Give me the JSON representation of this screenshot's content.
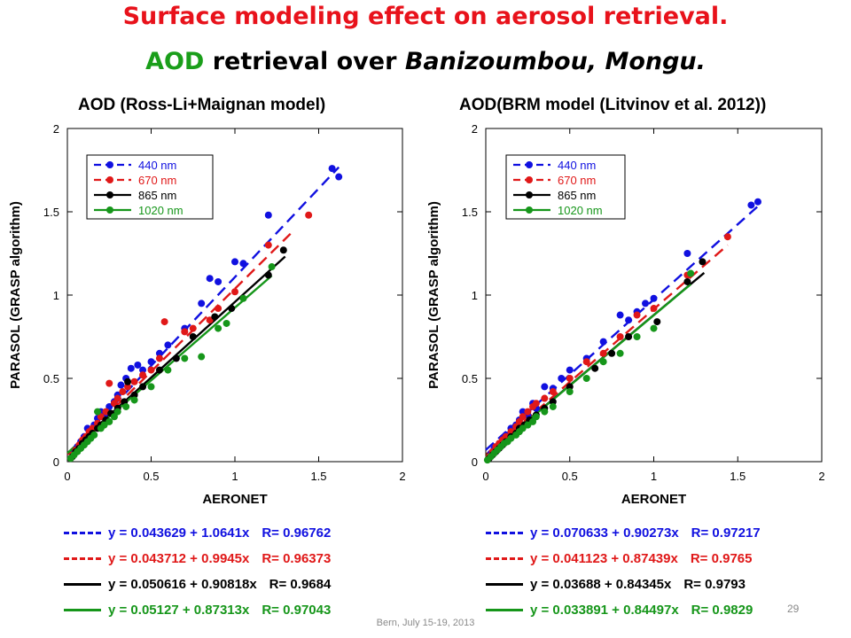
{
  "title": {
    "line1": "Surface modeling effect on aerosol retrieval.",
    "line2_aod": "AOD",
    "line2_mid": " retrieval over ",
    "line2_place": "Banizoumbou, Mongu."
  },
  "footer": "Bern, July 15-19, 2013",
  "page_number": "29",
  "colors": {
    "440": "#1010e0",
    "670": "#e01818",
    "865": "#000000",
    "1020": "#16961a"
  },
  "chart_data": [
    {
      "type": "scatter",
      "title": "AOD (Ross-Li+Maignan model)",
      "xlabel": "AERONET",
      "ylabel": "PARASOL (GRASP algorithm)",
      "xlim": [
        0,
        2
      ],
      "ylim": [
        0,
        2
      ],
      "xticks": [
        "0",
        "0.5",
        "1",
        "1.5",
        "2"
      ],
      "yticks": [
        "0",
        "0.5",
        "1",
        "1.5",
        "2"
      ],
      "legend_position": "top-left",
      "series": [
        {
          "name": "440 nm",
          "key": "440",
          "points": [
            [
              0.04,
              0.05
            ],
            [
              0.06,
              0.09
            ],
            [
              0.08,
              0.12
            ],
            [
              0.1,
              0.15
            ],
            [
              0.12,
              0.2
            ],
            [
              0.14,
              0.18
            ],
            [
              0.16,
              0.22
            ],
            [
              0.18,
              0.26
            ],
            [
              0.2,
              0.3
            ],
            [
              0.22,
              0.28
            ],
            [
              0.25,
              0.33
            ],
            [
              0.28,
              0.36
            ],
            [
              0.3,
              0.4
            ],
            [
              0.32,
              0.46
            ],
            [
              0.35,
              0.5
            ],
            [
              0.38,
              0.56
            ],
            [
              0.42,
              0.58
            ],
            [
              0.45,
              0.55
            ],
            [
              0.5,
              0.6
            ],
            [
              0.55,
              0.65
            ],
            [
              0.6,
              0.7
            ],
            [
              0.7,
              0.8
            ],
            [
              0.8,
              0.95
            ],
            [
              0.85,
              1.1
            ],
            [
              0.9,
              1.08
            ],
            [
              1.0,
              1.2
            ],
            [
              1.05,
              1.19
            ],
            [
              1.2,
              1.48
            ],
            [
              1.58,
              1.76
            ],
            [
              1.62,
              1.71
            ]
          ],
          "fit": {
            "intercept": 0.043629,
            "slope": 1.0641,
            "x_end": 1.62
          },
          "fit_label": "y = 0.043629 + 1.0641x",
          "r_label": "R= 0.96762"
        },
        {
          "name": "670 nm",
          "key": "670",
          "points": [
            [
              0.03,
              0.04
            ],
            [
              0.05,
              0.07
            ],
            [
              0.07,
              0.1
            ],
            [
              0.09,
              0.13
            ],
            [
              0.11,
              0.15
            ],
            [
              0.13,
              0.18
            ],
            [
              0.15,
              0.2
            ],
            [
              0.18,
              0.23
            ],
            [
              0.2,
              0.27
            ],
            [
              0.23,
              0.3
            ],
            [
              0.25,
              0.47
            ],
            [
              0.28,
              0.35
            ],
            [
              0.3,
              0.38
            ],
            [
              0.33,
              0.42
            ],
            [
              0.36,
              0.45
            ],
            [
              0.4,
              0.48
            ],
            [
              0.45,
              0.52
            ],
            [
              0.5,
              0.55
            ],
            [
              0.55,
              0.62
            ],
            [
              0.58,
              0.84
            ],
            [
              0.7,
              0.78
            ],
            [
              0.75,
              0.8
            ],
            [
              0.85,
              0.85
            ],
            [
              0.9,
              0.92
            ],
            [
              1.0,
              1.02
            ],
            [
              1.2,
              1.3
            ],
            [
              1.44,
              1.48
            ]
          ],
          "fit": {
            "intercept": 0.043712,
            "slope": 0.9945,
            "x_end": 1.35
          },
          "fit_label": "y = 0.043712 + 0.9945x",
          "r_label": "R= 0.96373"
        },
        {
          "name": "865 nm",
          "key": "865",
          "points": [
            [
              0.03,
              0.03
            ],
            [
              0.05,
              0.06
            ],
            [
              0.07,
              0.08
            ],
            [
              0.09,
              0.11
            ],
            [
              0.11,
              0.13
            ],
            [
              0.13,
              0.15
            ],
            [
              0.15,
              0.17
            ],
            [
              0.18,
              0.2
            ],
            [
              0.2,
              0.22
            ],
            [
              0.23,
              0.25
            ],
            [
              0.26,
              0.29
            ],
            [
              0.3,
              0.32
            ],
            [
              0.34,
              0.36
            ],
            [
              0.36,
              0.48
            ],
            [
              0.4,
              0.4
            ],
            [
              0.45,
              0.45
            ],
            [
              0.55,
              0.55
            ],
            [
              0.65,
              0.62
            ],
            [
              0.75,
              0.75
            ],
            [
              0.88,
              0.87
            ],
            [
              0.98,
              0.92
            ],
            [
              1.2,
              1.12
            ],
            [
              1.29,
              1.27
            ]
          ],
          "fit": {
            "intercept": 0.050616,
            "slope": 0.90818,
            "x_end": 1.3
          },
          "fit_label": "y = 0.050616 + 0.90818x",
          "r_label": "R= 0.9684"
        },
        {
          "name": "1020 nm",
          "key": "1020",
          "points": [
            [
              0.02,
              0.02
            ],
            [
              0.04,
              0.04
            ],
            [
              0.06,
              0.06
            ],
            [
              0.08,
              0.08
            ],
            [
              0.1,
              0.1
            ],
            [
              0.12,
              0.12
            ],
            [
              0.14,
              0.14
            ],
            [
              0.16,
              0.16
            ],
            [
              0.18,
              0.3
            ],
            [
              0.2,
              0.2
            ],
            [
              0.22,
              0.22
            ],
            [
              0.25,
              0.24
            ],
            [
              0.28,
              0.27
            ],
            [
              0.3,
              0.3
            ],
            [
              0.35,
              0.33
            ],
            [
              0.4,
              0.37
            ],
            [
              0.5,
              0.45
            ],
            [
              0.6,
              0.55
            ],
            [
              0.7,
              0.62
            ],
            [
              0.8,
              0.63
            ],
            [
              0.9,
              0.8
            ],
            [
              0.95,
              0.83
            ],
            [
              1.05,
              0.98
            ],
            [
              1.22,
              1.17
            ]
          ],
          "fit": {
            "intercept": 0.05127,
            "slope": 0.87313,
            "x_end": 1.22
          },
          "fit_label": "y = 0.05127 + 0.87313x",
          "r_label": "R= 0.97043"
        }
      ]
    },
    {
      "type": "scatter",
      "title": "AOD(BRM model (Litvinov et al. 2012))",
      "xlabel": "AERONET",
      "ylabel": "PARASOL (GRASP algorithm)",
      "xlim": [
        0,
        2
      ],
      "ylim": [
        0,
        2
      ],
      "xticks": [
        "0",
        "0.5",
        "1",
        "1.5",
        "2"
      ],
      "yticks": [
        "0",
        "0.5",
        "1",
        "1.5",
        "2"
      ],
      "legend_position": "top-left",
      "series": [
        {
          "name": "440 nm",
          "key": "440",
          "points": [
            [
              0.03,
              0.05
            ],
            [
              0.05,
              0.08
            ],
            [
              0.08,
              0.1
            ],
            [
              0.1,
              0.14
            ],
            [
              0.12,
              0.16
            ],
            [
              0.15,
              0.2
            ],
            [
              0.18,
              0.22
            ],
            [
              0.2,
              0.25
            ],
            [
              0.22,
              0.3
            ],
            [
              0.25,
              0.28
            ],
            [
              0.28,
              0.35
            ],
            [
              0.3,
              0.32
            ],
            [
              0.35,
              0.45
            ],
            [
              0.4,
              0.44
            ],
            [
              0.45,
              0.5
            ],
            [
              0.5,
              0.55
            ],
            [
              0.6,
              0.62
            ],
            [
              0.7,
              0.72
            ],
            [
              0.8,
              0.88
            ],
            [
              0.85,
              0.85
            ],
            [
              0.9,
              0.9
            ],
            [
              0.95,
              0.95
            ],
            [
              1.0,
              0.98
            ],
            [
              1.2,
              1.25
            ],
            [
              1.58,
              1.54
            ],
            [
              1.62,
              1.56
            ]
          ],
          "fit": {
            "intercept": 0.070633,
            "slope": 0.90273,
            "x_end": 1.62
          },
          "fit_label": "y = 0.070633 + 0.90273x",
          "r_label": "R= 0.97217"
        },
        {
          "name": "670 nm",
          "key": "670",
          "points": [
            [
              0.02,
              0.03
            ],
            [
              0.04,
              0.06
            ],
            [
              0.06,
              0.09
            ],
            [
              0.08,
              0.11
            ],
            [
              0.1,
              0.13
            ],
            [
              0.12,
              0.15
            ],
            [
              0.15,
              0.18
            ],
            [
              0.18,
              0.21
            ],
            [
              0.2,
              0.24
            ],
            [
              0.22,
              0.27
            ],
            [
              0.25,
              0.3
            ],
            [
              0.28,
              0.33
            ],
            [
              0.3,
              0.35
            ],
            [
              0.35,
              0.38
            ],
            [
              0.4,
              0.42
            ],
            [
              0.5,
              0.5
            ],
            [
              0.6,
              0.6
            ],
            [
              0.7,
              0.65
            ],
            [
              0.8,
              0.75
            ],
            [
              0.9,
              0.88
            ],
            [
              1.0,
              0.92
            ],
            [
              1.2,
              1.12
            ],
            [
              1.44,
              1.35
            ]
          ],
          "fit": {
            "intercept": 0.041123,
            "slope": 0.87439,
            "x_end": 1.44
          },
          "fit_label": "y = 0.041123 + 0.87439x",
          "r_label": "R= 0.9765"
        },
        {
          "name": "865 nm",
          "key": "865",
          "points": [
            [
              0.02,
              0.02
            ],
            [
              0.04,
              0.04
            ],
            [
              0.06,
              0.06
            ],
            [
              0.08,
              0.08
            ],
            [
              0.1,
              0.1
            ],
            [
              0.12,
              0.12
            ],
            [
              0.15,
              0.15
            ],
            [
              0.18,
              0.17
            ],
            [
              0.2,
              0.2
            ],
            [
              0.23,
              0.22
            ],
            [
              0.26,
              0.25
            ],
            [
              0.3,
              0.28
            ],
            [
              0.35,
              0.32
            ],
            [
              0.4,
              0.36
            ],
            [
              0.5,
              0.45
            ],
            [
              0.65,
              0.56
            ],
            [
              0.75,
              0.65
            ],
            [
              0.85,
              0.75
            ],
            [
              1.02,
              0.84
            ],
            [
              1.2,
              1.08
            ],
            [
              1.29,
              1.2
            ]
          ],
          "fit": {
            "intercept": 0.03688,
            "slope": 0.84345,
            "x_end": 1.3
          },
          "fit_label": "y = 0.03688 + 0.84345x",
          "r_label": "R= 0.9793"
        },
        {
          "name": "1020 nm",
          "key": "1020",
          "points": [
            [
              0.01,
              0.01
            ],
            [
              0.03,
              0.03
            ],
            [
              0.05,
              0.05
            ],
            [
              0.07,
              0.07
            ],
            [
              0.09,
              0.09
            ],
            [
              0.11,
              0.11
            ],
            [
              0.13,
              0.12
            ],
            [
              0.15,
              0.14
            ],
            [
              0.18,
              0.16
            ],
            [
              0.2,
              0.18
            ],
            [
              0.22,
              0.2
            ],
            [
              0.25,
              0.22
            ],
            [
              0.28,
              0.24
            ],
            [
              0.3,
              0.27
            ],
            [
              0.35,
              0.3
            ],
            [
              0.4,
              0.33
            ],
            [
              0.5,
              0.42
            ],
            [
              0.6,
              0.5
            ],
            [
              0.7,
              0.6
            ],
            [
              0.8,
              0.65
            ],
            [
              0.9,
              0.75
            ],
            [
              1.0,
              0.8
            ],
            [
              1.22,
              1.13
            ]
          ],
          "fit": {
            "intercept": 0.033891,
            "slope": 0.84497,
            "x_end": 1.22
          },
          "fit_label": "y = 0.033891 + 0.84497x",
          "r_label": "R= 0.9829"
        }
      ]
    }
  ]
}
